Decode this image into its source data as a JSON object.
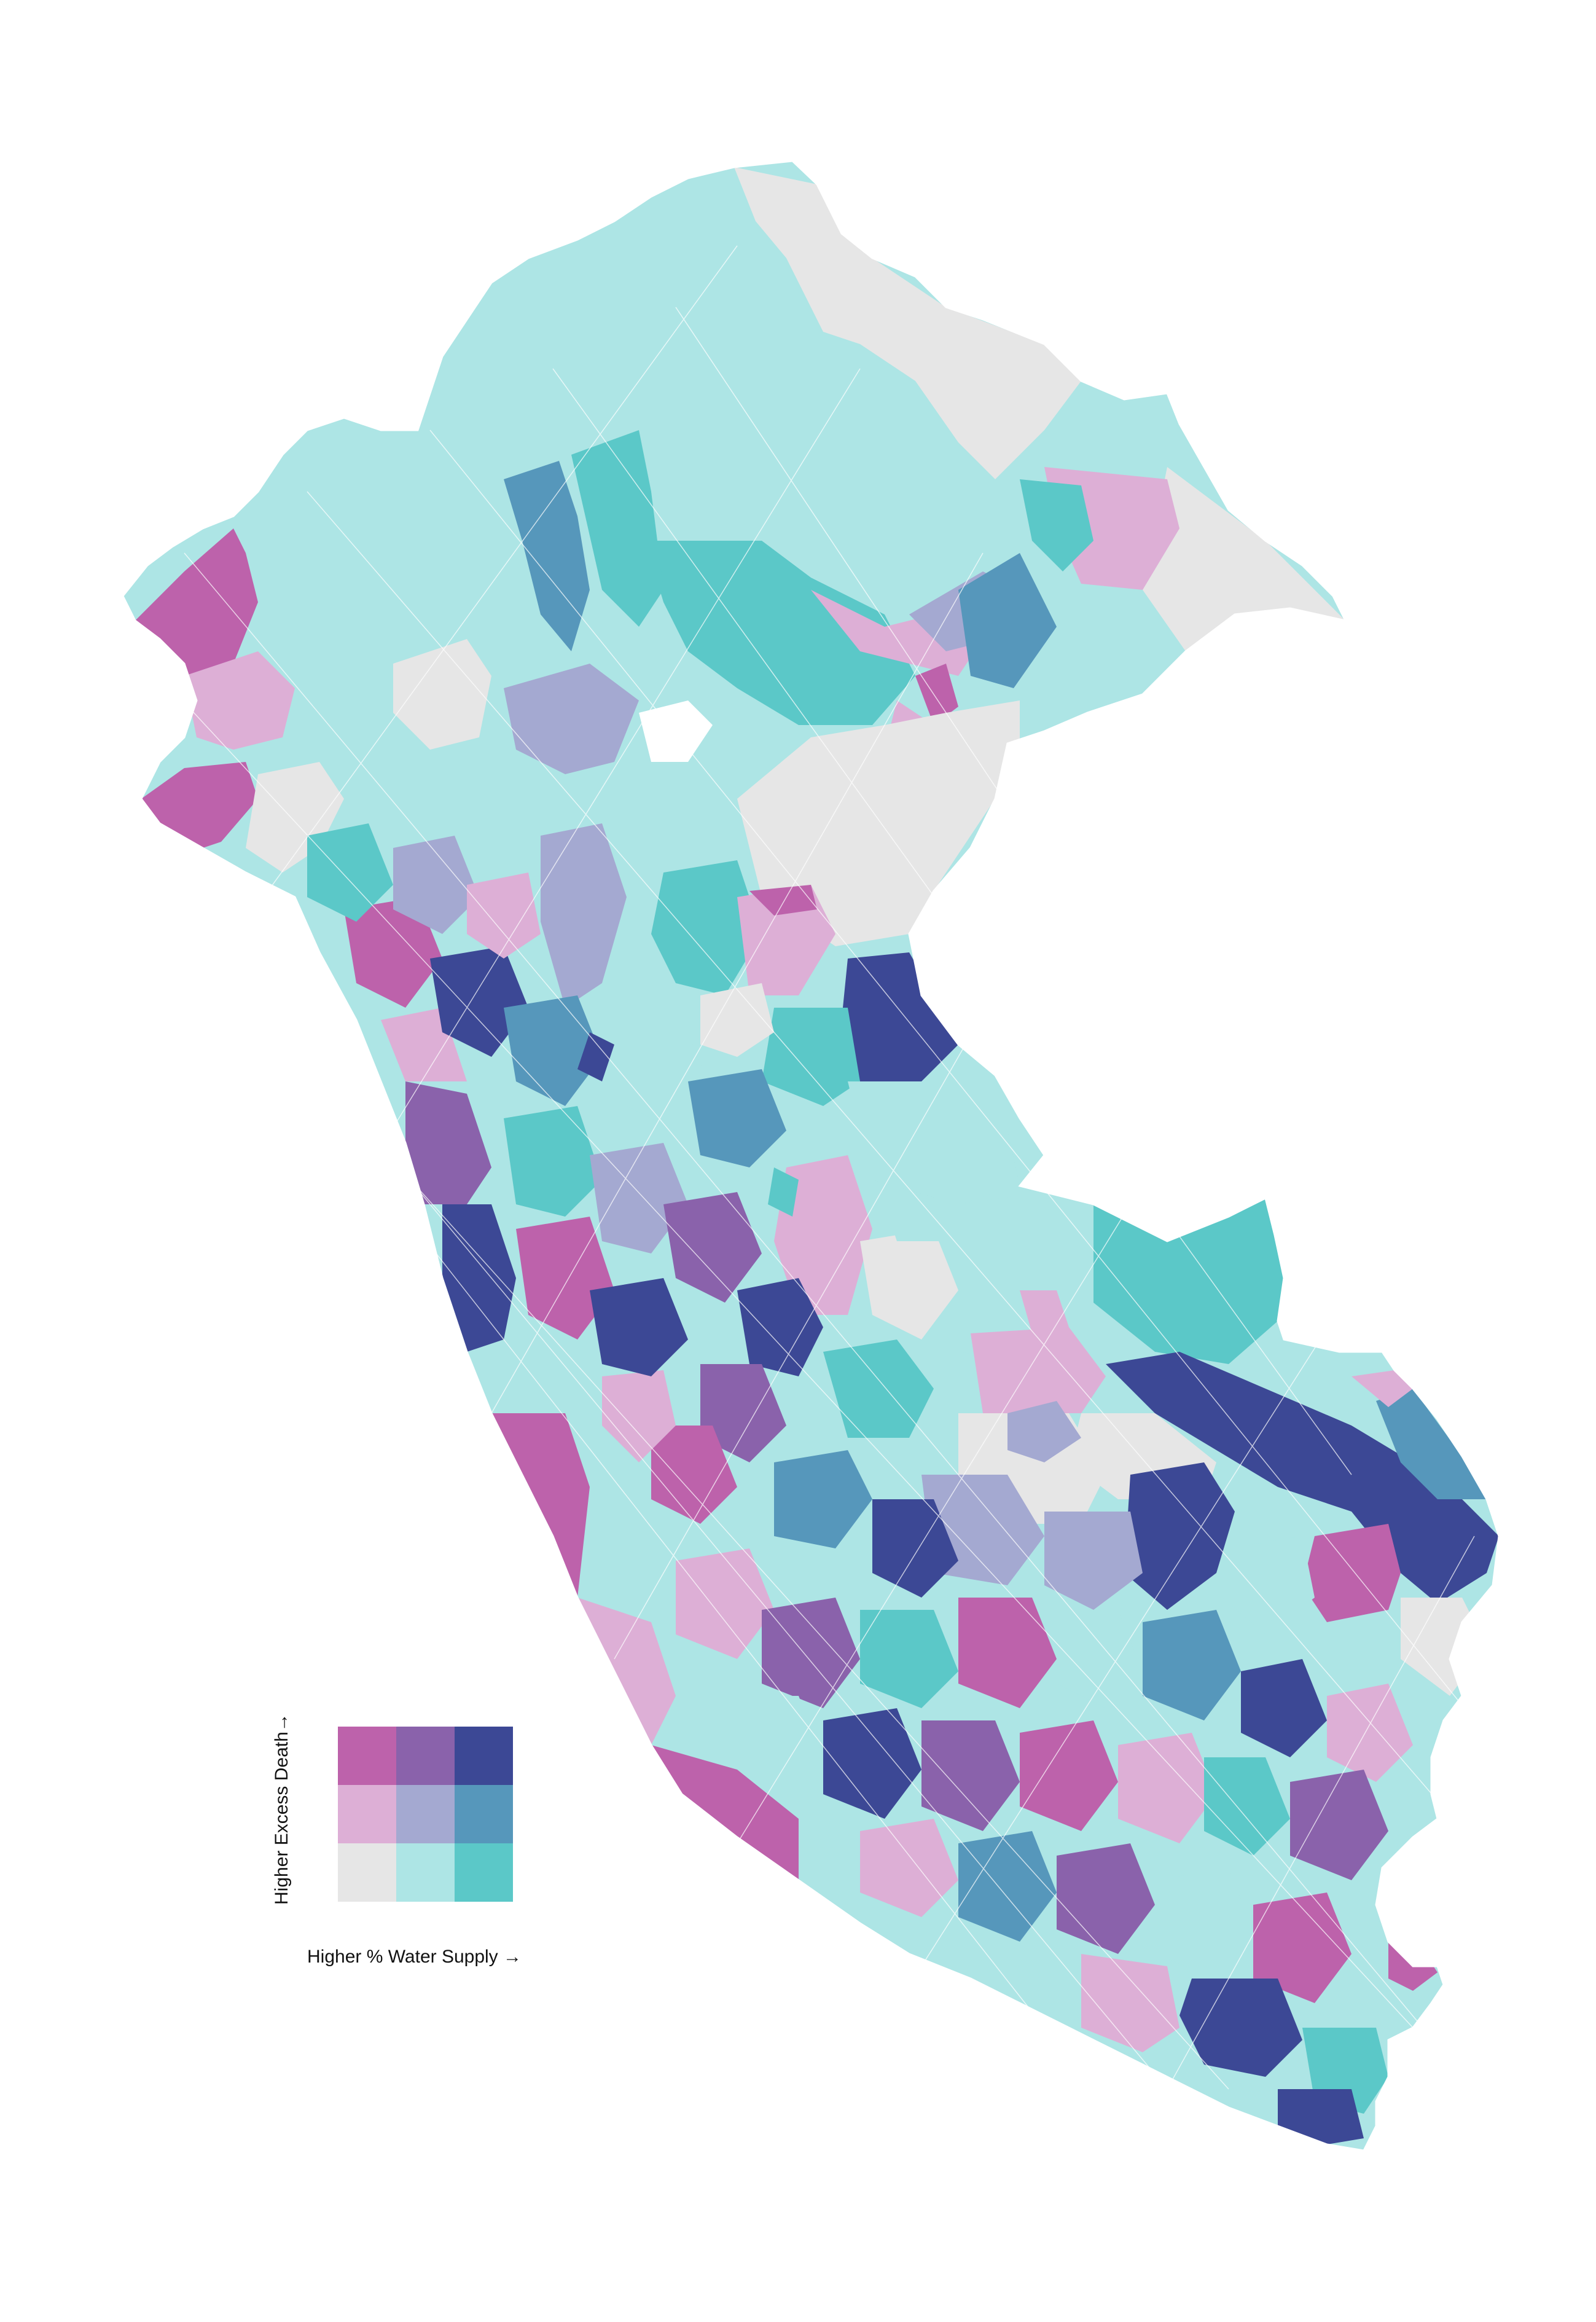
{
  "legend": {
    "y_label": "Higher Excess Death→",
    "x_label": "Higher % Water Supply →",
    "grid_colors": [
      [
        "#bd62ab",
        "#8a62ab",
        "#3c4895"
      ],
      [
        "#ddafd6",
        "#a4a9d1",
        "#5697bb"
      ],
      [
        "#e6e6e6",
        "#ade5e5",
        "#5bc8c8"
      ]
    ]
  },
  "colors": {
    "high_death_low_water": "#bd62ab",
    "high_death_mid_water": "#8a62ab",
    "high_death_high_water": "#3c4895",
    "mid_death_low_water": "#ddafd6",
    "mid_death_mid_water": "#a4a9d1",
    "mid_death_high_water": "#5697bb",
    "low_death_low_water": "#e6e6e6",
    "low_death_mid_water": "#ade5e5",
    "low_death_high_water": "#5bc8c8",
    "district_border": "#ffffff",
    "background": "#ffffff"
  }
}
